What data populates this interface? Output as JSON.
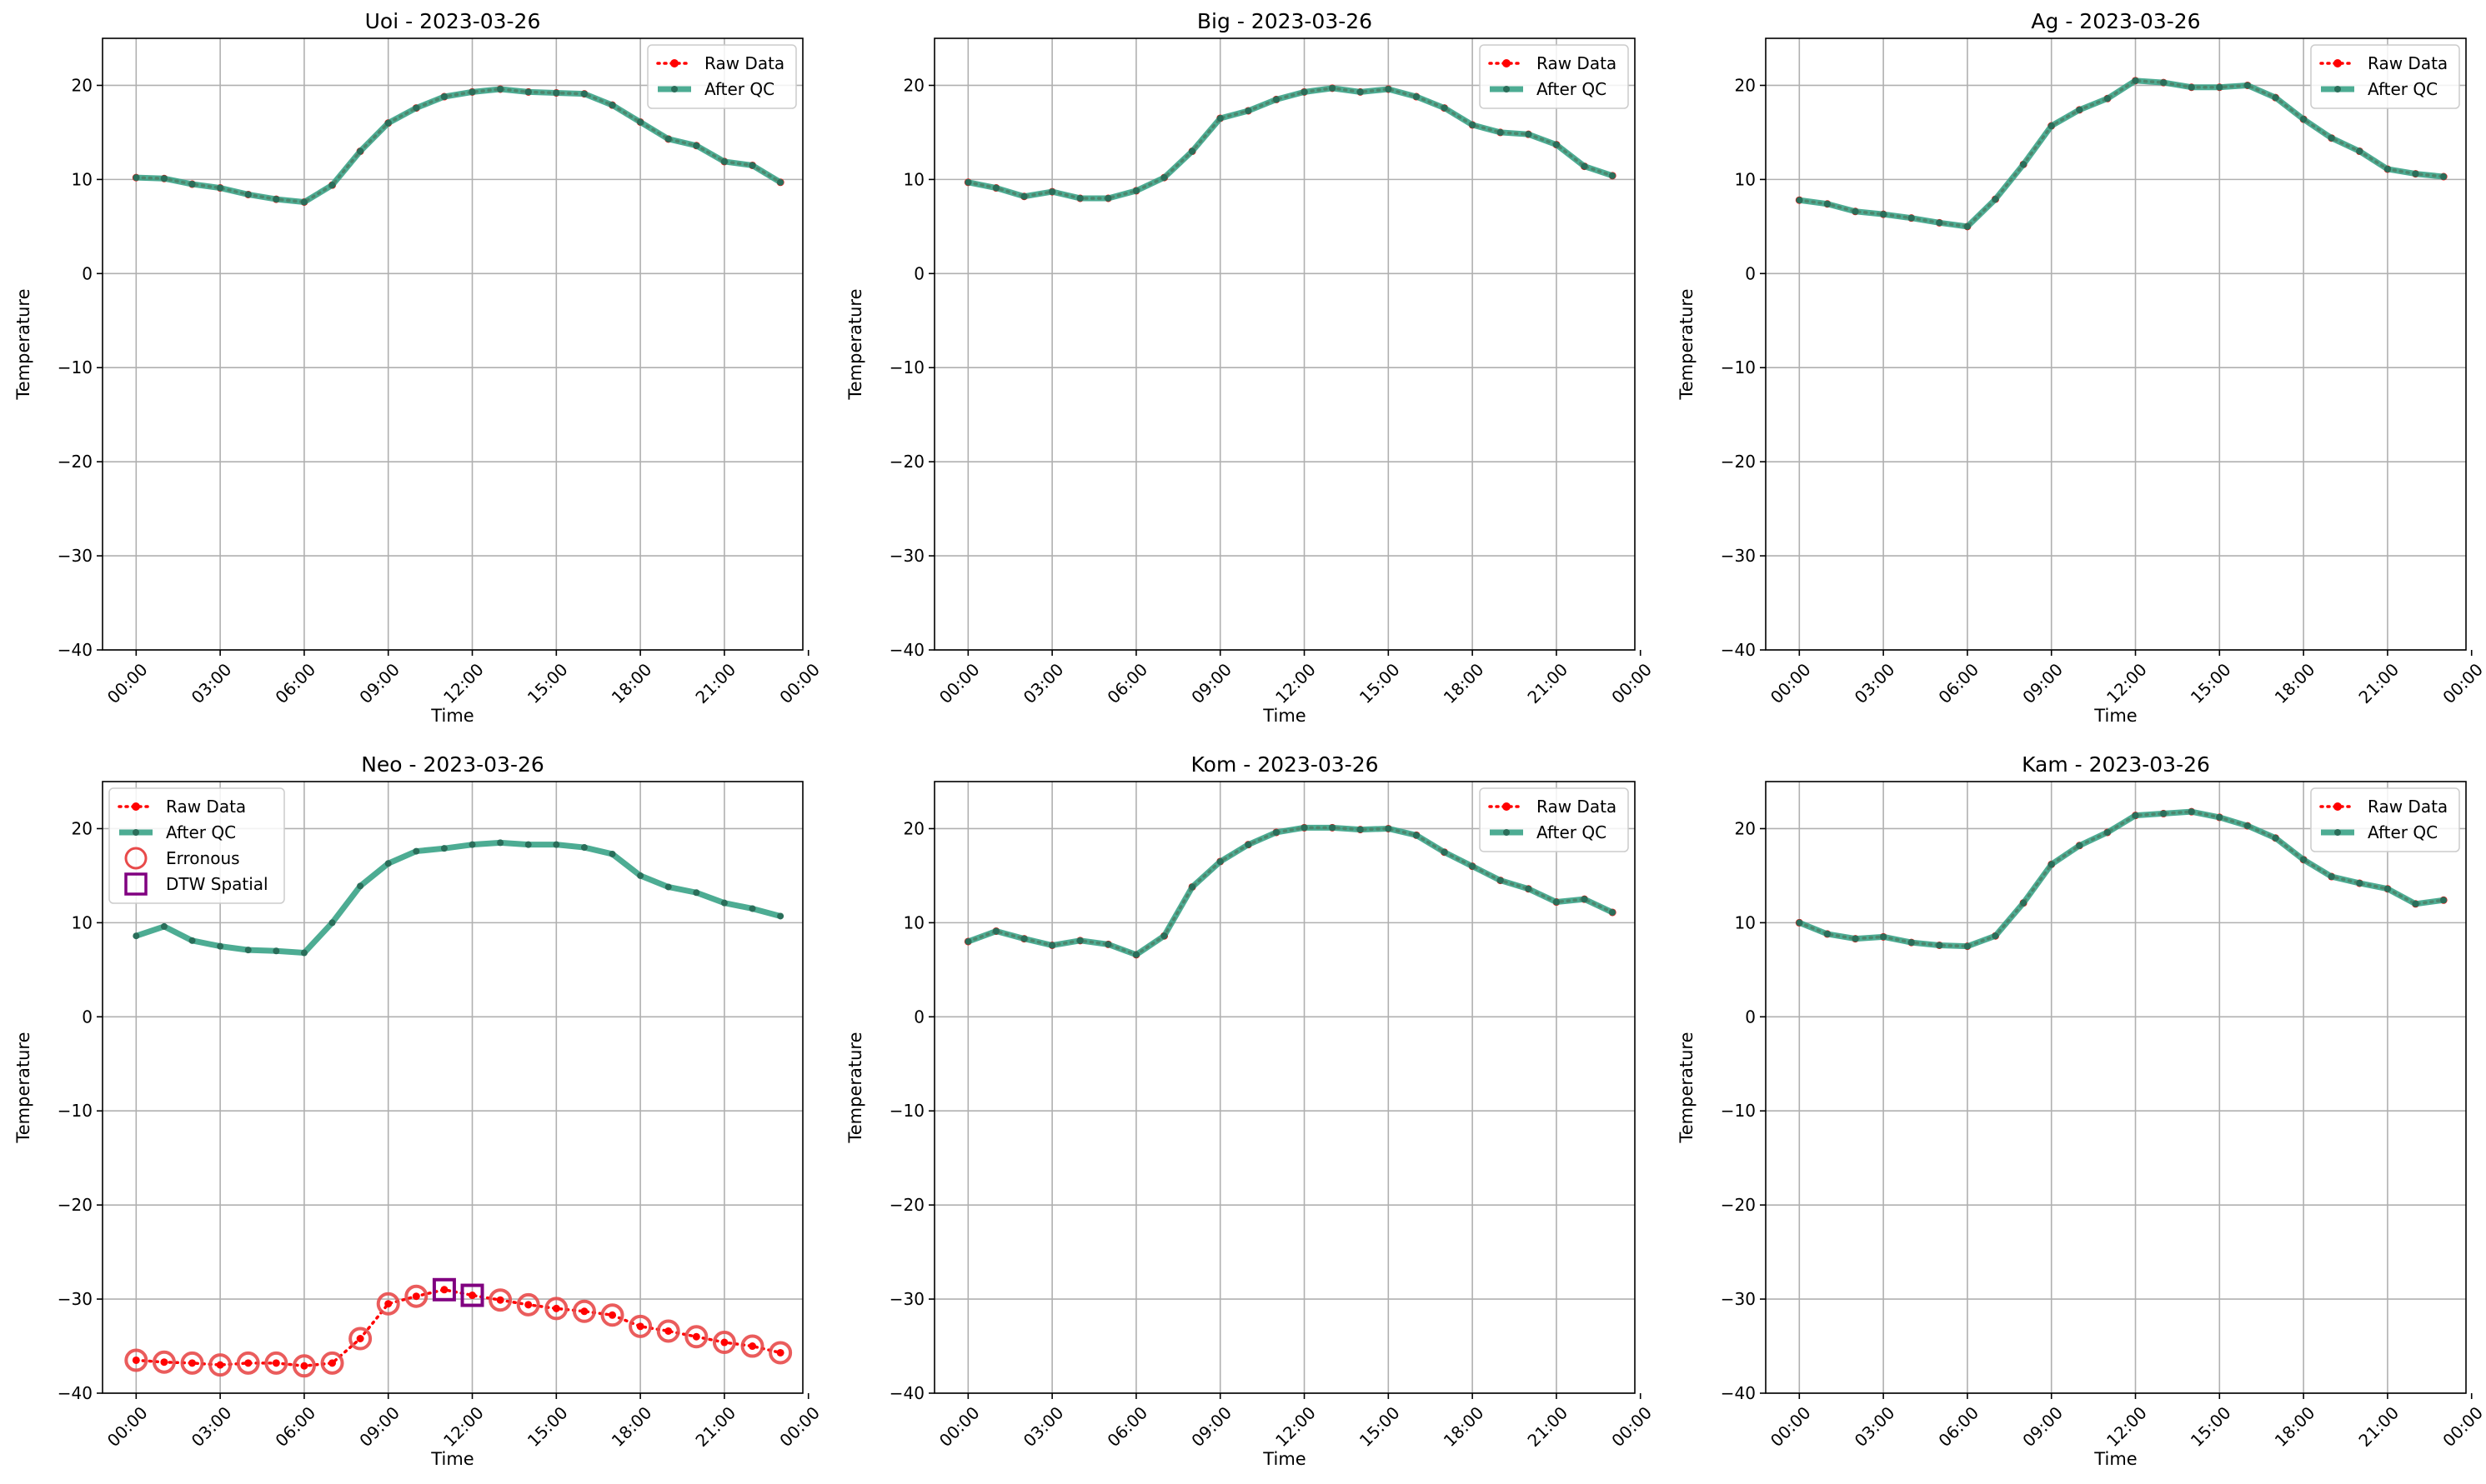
{
  "colors": {
    "raw": "#ff0000",
    "after_qc": "#2e9e80",
    "after_qc_marker": "#2a6e5a",
    "erroneous": "#e84a4a",
    "dtw": "#800080",
    "grid": "#b0b0b0"
  },
  "chart_data": [
    {
      "type": "line",
      "title": "Uoi - 2023-03-26",
      "xlabel": "Time",
      "ylabel": "Temperature",
      "xlim": [
        -1.2,
        23.8
      ],
      "ylim": [
        -40,
        25
      ],
      "xticks": [
        0,
        3,
        6,
        9,
        12,
        15,
        18,
        21,
        24
      ],
      "x_tick_labels": [
        "00:00",
        "03:00",
        "06:00",
        "09:00",
        "12:00",
        "15:00",
        "18:00",
        "21:00",
        "00:00"
      ],
      "yticks": [
        -40,
        -30,
        -20,
        -10,
        0,
        10,
        20
      ],
      "y_tick_labels": [
        "−40",
        "−30",
        "−20",
        "−10",
        "0",
        "10",
        "20"
      ],
      "grid": true,
      "legend_position": "upper right",
      "legend": [
        "Raw Data",
        "After QC"
      ],
      "x": [
        0,
        1,
        2,
        3,
        4,
        5,
        6,
        7,
        8,
        9,
        10,
        11,
        12,
        13,
        14,
        15,
        16,
        17,
        18,
        19,
        20,
        21,
        22,
        23
      ],
      "series": [
        {
          "name": "Raw Data",
          "values": [
            10.2,
            10.1,
            9.5,
            9.1,
            8.4,
            7.9,
            7.6,
            9.4,
            13.0,
            16.0,
            17.6,
            18.8,
            19.3,
            19.6,
            19.3,
            19.2,
            19.1,
            17.9,
            16.1,
            14.3,
            13.6,
            11.9,
            11.5,
            9.7
          ]
        },
        {
          "name": "After QC",
          "values": [
            10.2,
            10.1,
            9.5,
            9.1,
            8.4,
            7.9,
            7.6,
            9.4,
            13.0,
            16.0,
            17.6,
            18.8,
            19.3,
            19.6,
            19.3,
            19.2,
            19.1,
            17.9,
            16.1,
            14.3,
            13.6,
            11.9,
            11.5,
            9.7
          ]
        }
      ]
    },
    {
      "type": "line",
      "title": "Big - 2023-03-26",
      "xlabel": "Time",
      "ylabel": "Temperature",
      "xlim": [
        -1.2,
        23.8
      ],
      "ylim": [
        -40,
        25
      ],
      "xticks": [
        0,
        3,
        6,
        9,
        12,
        15,
        18,
        21,
        24
      ],
      "x_tick_labels": [
        "00:00",
        "03:00",
        "06:00",
        "09:00",
        "12:00",
        "15:00",
        "18:00",
        "21:00",
        "00:00"
      ],
      "yticks": [
        -40,
        -30,
        -20,
        -10,
        0,
        10,
        20
      ],
      "y_tick_labels": [
        "−40",
        "−30",
        "−20",
        "−10",
        "0",
        "10",
        "20"
      ],
      "grid": true,
      "legend_position": "upper right",
      "legend": [
        "Raw Data",
        "After QC"
      ],
      "x": [
        0,
        1,
        2,
        3,
        4,
        5,
        6,
        7,
        8,
        9,
        10,
        11,
        12,
        13,
        14,
        15,
        16,
        17,
        18,
        19,
        20,
        21,
        22,
        23
      ],
      "series": [
        {
          "name": "Raw Data",
          "values": [
            9.7,
            9.1,
            8.2,
            8.7,
            8.0,
            8.0,
            8.8,
            10.2,
            13.0,
            16.5,
            17.3,
            18.5,
            19.3,
            19.7,
            19.3,
            19.6,
            18.8,
            17.6,
            15.8,
            15.0,
            14.8,
            13.7,
            11.4,
            10.4
          ]
        },
        {
          "name": "After QC",
          "values": [
            9.7,
            9.1,
            8.2,
            8.7,
            8.0,
            8.0,
            8.8,
            10.2,
            13.0,
            16.5,
            17.3,
            18.5,
            19.3,
            19.7,
            19.3,
            19.6,
            18.8,
            17.6,
            15.8,
            15.0,
            14.8,
            13.7,
            11.4,
            10.4
          ]
        }
      ]
    },
    {
      "type": "line",
      "title": "Ag - 2023-03-26",
      "xlabel": "Time",
      "ylabel": "Temperature",
      "xlim": [
        -1.2,
        23.8
      ],
      "ylim": [
        -40,
        25
      ],
      "xticks": [
        0,
        3,
        6,
        9,
        12,
        15,
        18,
        21,
        24
      ],
      "x_tick_labels": [
        "00:00",
        "03:00",
        "06:00",
        "09:00",
        "12:00",
        "15:00",
        "18:00",
        "21:00",
        "00:00"
      ],
      "yticks": [
        -40,
        -30,
        -20,
        -10,
        0,
        10,
        20
      ],
      "y_tick_labels": [
        "−40",
        "−30",
        "−20",
        "−10",
        "0",
        "10",
        "20"
      ],
      "grid": true,
      "legend_position": "upper right",
      "legend": [
        "Raw Data",
        "After QC"
      ],
      "x": [
        0,
        1,
        2,
        3,
        4,
        5,
        6,
        7,
        8,
        9,
        10,
        11,
        12,
        13,
        14,
        15,
        16,
        17,
        18,
        19,
        20,
        21,
        22,
        23
      ],
      "series": [
        {
          "name": "Raw Data",
          "values": [
            7.8,
            7.4,
            6.6,
            6.3,
            5.9,
            5.4,
            5.0,
            7.9,
            11.6,
            15.7,
            17.4,
            18.6,
            20.5,
            20.3,
            19.8,
            19.8,
            20.0,
            18.7,
            16.4,
            14.4,
            13.0,
            11.1,
            10.6,
            10.3
          ]
        },
        {
          "name": "After QC",
          "values": [
            7.8,
            7.4,
            6.6,
            6.3,
            5.9,
            5.4,
            5.0,
            7.9,
            11.6,
            15.7,
            17.4,
            18.6,
            20.5,
            20.3,
            19.8,
            19.8,
            20.0,
            18.7,
            16.4,
            14.4,
            13.0,
            11.1,
            10.6,
            10.3
          ]
        }
      ]
    },
    {
      "type": "line",
      "title": "Neo - 2023-03-26",
      "xlabel": "Time",
      "ylabel": "Temperature",
      "xlim": [
        -1.2,
        23.8
      ],
      "ylim": [
        -40,
        25
      ],
      "xticks": [
        0,
        3,
        6,
        9,
        12,
        15,
        18,
        21,
        24
      ],
      "x_tick_labels": [
        "00:00",
        "03:00",
        "06:00",
        "09:00",
        "12:00",
        "15:00",
        "18:00",
        "21:00",
        "00:00"
      ],
      "yticks": [
        -40,
        -30,
        -20,
        -10,
        0,
        10,
        20
      ],
      "y_tick_labels": [
        "−40",
        "−30",
        "−20",
        "−10",
        "0",
        "10",
        "20"
      ],
      "grid": true,
      "legend_position": "upper left",
      "legend": [
        "Raw Data",
        "After QC",
        "Erronous",
        "DTW Spatial"
      ],
      "x": [
        0,
        1,
        2,
        3,
        4,
        5,
        6,
        7,
        8,
        9,
        10,
        11,
        12,
        13,
        14,
        15,
        16,
        17,
        18,
        19,
        20,
        21,
        22,
        23
      ],
      "series": [
        {
          "name": "Raw Data",
          "values": [
            -36.5,
            -36.7,
            -36.8,
            -37.0,
            -36.8,
            -36.8,
            -37.1,
            -36.8,
            -34.2,
            -30.5,
            -29.7,
            -29.0,
            -29.6,
            -30.1,
            -30.6,
            -31.0,
            -31.3,
            -31.7,
            -32.9,
            -33.4,
            -34.0,
            -34.6,
            -35.0,
            -35.7
          ]
        },
        {
          "name": "After QC",
          "values": [
            8.6,
            9.6,
            8.1,
            7.5,
            7.1,
            7.0,
            6.8,
            10.0,
            13.9,
            16.3,
            17.6,
            17.9,
            18.3,
            18.5,
            18.3,
            18.3,
            18.0,
            17.3,
            15.0,
            13.8,
            13.2,
            12.1,
            11.5,
            10.7
          ]
        }
      ],
      "erroneous_x": [
        0,
        1,
        2,
        3,
        4,
        5,
        6,
        7,
        8,
        9,
        10,
        13,
        14,
        15,
        16,
        17,
        18,
        19,
        20,
        21,
        22,
        23
      ],
      "dtw_spatial_x": [
        11,
        12
      ]
    },
    {
      "type": "line",
      "title": "Kom - 2023-03-26",
      "xlabel": "Time",
      "ylabel": "Temperature",
      "xlim": [
        -1.2,
        23.8
      ],
      "ylim": [
        -40,
        25
      ],
      "xticks": [
        0,
        3,
        6,
        9,
        12,
        15,
        18,
        21,
        24
      ],
      "x_tick_labels": [
        "00:00",
        "03:00",
        "06:00",
        "09:00",
        "12:00",
        "15:00",
        "18:00",
        "21:00",
        "00:00"
      ],
      "yticks": [
        -40,
        -30,
        -20,
        -10,
        0,
        10,
        20
      ],
      "y_tick_labels": [
        "−40",
        "−30",
        "−20",
        "−10",
        "0",
        "10",
        "20"
      ],
      "grid": true,
      "legend_position": "upper right",
      "legend": [
        "Raw Data",
        "After QC"
      ],
      "x": [
        0,
        1,
        2,
        3,
        4,
        5,
        6,
        7,
        8,
        9,
        10,
        11,
        12,
        13,
        14,
        15,
        16,
        17,
        18,
        19,
        20,
        21,
        22,
        23
      ],
      "series": [
        {
          "name": "Raw Data",
          "values": [
            8.0,
            9.1,
            8.3,
            7.6,
            8.1,
            7.7,
            6.6,
            8.6,
            13.8,
            16.5,
            18.3,
            19.6,
            20.1,
            20.1,
            19.9,
            20.0,
            19.3,
            17.5,
            16.0,
            14.5,
            13.6,
            12.2,
            12.5,
            11.1
          ]
        },
        {
          "name": "After QC",
          "values": [
            8.0,
            9.1,
            8.3,
            7.6,
            8.1,
            7.7,
            6.6,
            8.6,
            13.8,
            16.5,
            18.3,
            19.6,
            20.1,
            20.1,
            19.9,
            20.0,
            19.3,
            17.5,
            16.0,
            14.5,
            13.6,
            12.2,
            12.5,
            11.1
          ]
        }
      ]
    },
    {
      "type": "line",
      "title": "Kam - 2023-03-26",
      "xlabel": "Time",
      "ylabel": "Temperature",
      "xlim": [
        -1.2,
        23.8
      ],
      "ylim": [
        -40,
        25
      ],
      "xticks": [
        0,
        3,
        6,
        9,
        12,
        15,
        18,
        21,
        24
      ],
      "x_tick_labels": [
        "00:00",
        "03:00",
        "06:00",
        "09:00",
        "12:00",
        "15:00",
        "18:00",
        "21:00",
        "00:00"
      ],
      "yticks": [
        -40,
        -30,
        -20,
        -10,
        0,
        10,
        20
      ],
      "y_tick_labels": [
        "−40",
        "−30",
        "−20",
        "−10",
        "0",
        "10",
        "20"
      ],
      "grid": true,
      "legend_position": "upper right",
      "legend": [
        "Raw Data",
        "After QC"
      ],
      "x": [
        0,
        1,
        2,
        3,
        4,
        5,
        6,
        7,
        8,
        9,
        10,
        11,
        12,
        13,
        14,
        15,
        16,
        17,
        18,
        19,
        20,
        21,
        22,
        23
      ],
      "series": [
        {
          "name": "Raw Data",
          "values": [
            10.0,
            8.8,
            8.3,
            8.5,
            7.9,
            7.6,
            7.5,
            8.6,
            12.1,
            16.2,
            18.2,
            19.6,
            21.4,
            21.6,
            21.8,
            21.2,
            20.3,
            19.0,
            16.7,
            14.9,
            14.2,
            13.6,
            12.0,
            12.4
          ]
        },
        {
          "name": "After QC",
          "values": [
            10.0,
            8.8,
            8.3,
            8.5,
            7.9,
            7.6,
            7.5,
            8.6,
            12.1,
            16.2,
            18.2,
            19.6,
            21.4,
            21.6,
            21.8,
            21.2,
            20.3,
            19.0,
            16.7,
            14.9,
            14.2,
            13.6,
            12.0,
            12.4
          ]
        }
      ]
    }
  ]
}
